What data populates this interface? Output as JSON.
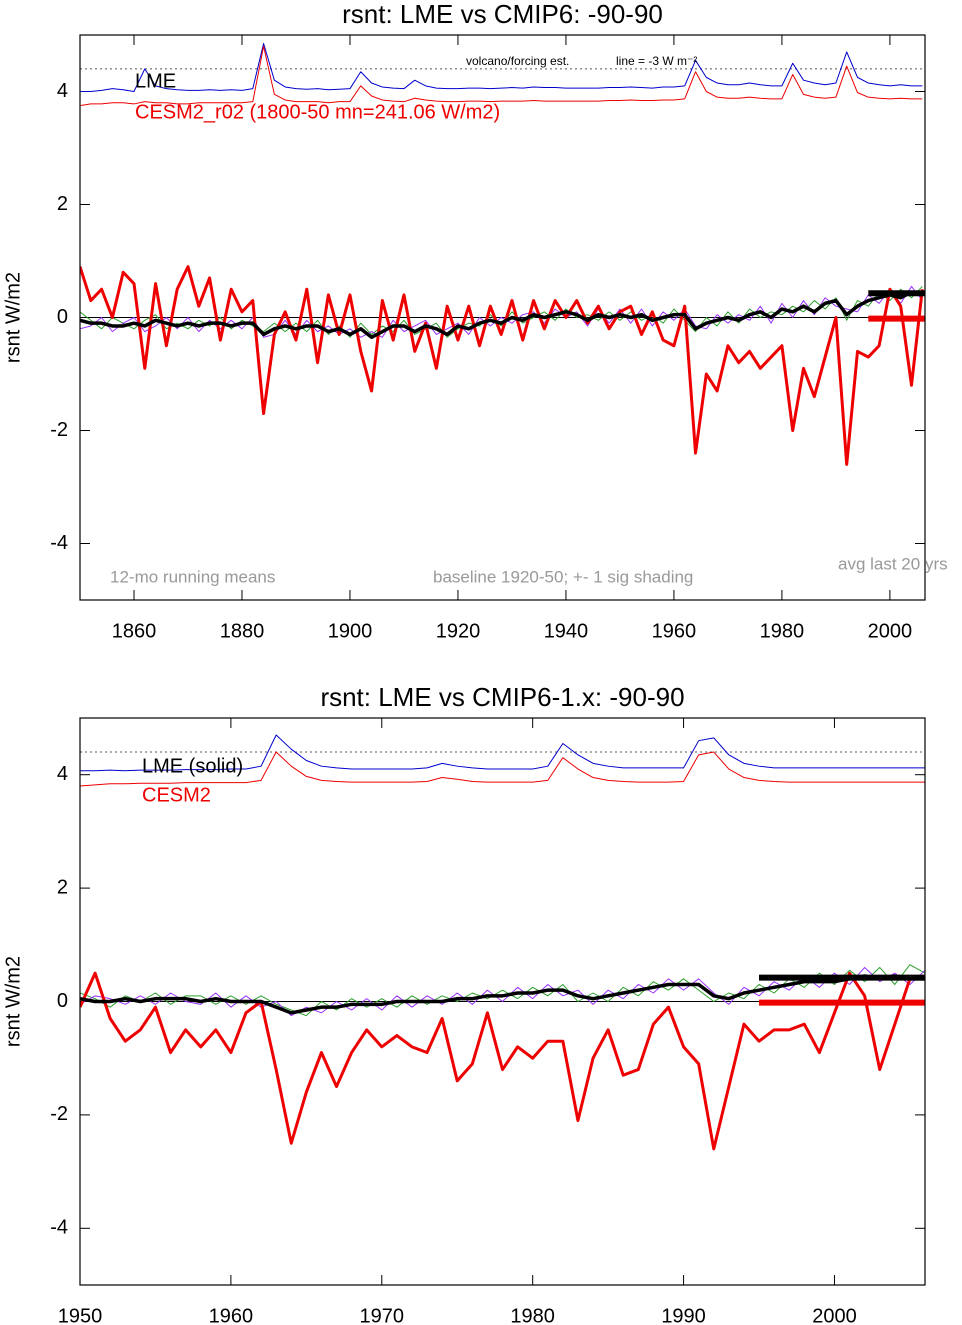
{
  "chart_data": [
    {
      "type": "line",
      "title": "rsnt: LME vs CMIP6: -90-90",
      "ylabel": "rsnt W/m2",
      "xlim": [
        1850,
        2006.5
      ],
      "xticks": [
        1860,
        1880,
        1900,
        1920,
        1940,
        1960,
        1980,
        2000
      ],
      "ylim": [
        -5,
        5
      ],
      "yticks": [
        -4,
        -2,
        0,
        2,
        4
      ],
      "zero_line": 0,
      "ref_line": 4.4,
      "annotations": [
        "volcano/forcing est.",
        "line = -3 W m⁻²",
        "12-mo running means",
        "baseline 1920-50; +- 1 sig shading",
        "avg last 20 yrs"
      ],
      "avg_bars": {
        "from": 1996,
        "values": [
          0.43,
          -0.02
        ],
        "colors": [
          "#000000",
          "#ee0000"
        ]
      },
      "x": [
        1850,
        1852,
        1854,
        1856,
        1858,
        1860,
        1862,
        1864,
        1866,
        1868,
        1870,
        1872,
        1874,
        1876,
        1878,
        1880,
        1882,
        1884,
        1886,
        1888,
        1890,
        1892,
        1894,
        1896,
        1898,
        1900,
        1902,
        1904,
        1906,
        1908,
        1910,
        1912,
        1914,
        1916,
        1918,
        1920,
        1922,
        1924,
        1926,
        1928,
        1930,
        1932,
        1934,
        1936,
        1938,
        1940,
        1942,
        1944,
        1946,
        1948,
        1950,
        1952,
        1954,
        1956,
        1958,
        1960,
        1962,
        1964,
        1966,
        1968,
        1970,
        1972,
        1974,
        1976,
        1978,
        1980,
        1982,
        1984,
        1986,
        1988,
        1990,
        1992,
        1994,
        1996,
        1998,
        2000,
        2002,
        2004,
        2006
      ],
      "series": [
        {
          "color": "#2ca02c",
          "values": [
            0.1,
            -0.05,
            -0.2,
            0.0,
            -0.1,
            -0.2,
            -0.05,
            0.05,
            -0.2,
            -0.1,
            -0.2,
            -0.05,
            -0.15,
            0.0,
            -0.2,
            -0.05,
            -0.15,
            -0.25,
            -0.1,
            -0.25,
            -0.1,
            -0.25,
            -0.05,
            -0.3,
            -0.15,
            -0.35,
            -0.1,
            -0.3,
            -0.15,
            -0.25,
            -0.05,
            -0.3,
            -0.2,
            -0.1,
            -0.35,
            -0.2,
            -0.1,
            -0.15,
            0.05,
            -0.15,
            0.1,
            -0.1,
            0.0,
            0.1,
            -0.05,
            0.15,
            0.0,
            0.05,
            -0.05,
            0.1,
            -0.05,
            0.1,
            -0.05,
            0.05,
            -0.1,
            0.15,
            -0.05,
            -0.25,
            0.0,
            -0.15,
            0.1,
            -0.1,
            0.15,
            0.0,
            0.1,
            0.05,
            0.2,
            0.1,
            0.3,
            0.15,
            0.35,
            -0.05,
            0.3,
            0.2,
            0.45,
            0.3,
            0.5,
            0.35,
            0.55
          ]
        },
        {
          "color": "#9b30ff",
          "values": [
            -0.2,
            -0.15,
            0.0,
            -0.25,
            -0.1,
            0.0,
            -0.25,
            -0.15,
            0.0,
            -0.2,
            0.0,
            -0.25,
            -0.05,
            -0.2,
            -0.05,
            -0.2,
            0.0,
            -0.35,
            -0.3,
            -0.05,
            -0.3,
            -0.05,
            -0.25,
            -0.15,
            -0.3,
            -0.2,
            -0.35,
            -0.25,
            -0.35,
            -0.05,
            -0.25,
            -0.15,
            -0.05,
            -0.3,
            -0.2,
            -0.1,
            -0.3,
            0.0,
            -0.15,
            0.0,
            -0.1,
            0.05,
            0.1,
            -0.1,
            0.15,
            0.0,
            0.1,
            -0.15,
            0.15,
            -0.1,
            0.15,
            -0.1,
            0.15,
            -0.15,
            0.1,
            -0.05,
            0.15,
            -0.15,
            -0.2,
            0.05,
            -0.1,
            0.05,
            -0.05,
            0.2,
            -0.1,
            0.25,
            0.0,
            0.3,
            0.05,
            0.35,
            0.2,
            0.15,
            0.1,
            0.4,
            0.25,
            0.5,
            0.25,
            0.55,
            0.3
          ]
        },
        {
          "color": "#0000cc",
          "values": [
            4.0,
            4.0,
            4.02,
            4.05,
            4.03,
            4.0,
            4.4,
            4.1,
            4.05,
            4.03,
            4.02,
            4.02,
            4.03,
            4.02,
            4.03,
            4.02,
            4.05,
            4.85,
            4.2,
            4.08,
            4.05,
            4.04,
            4.05,
            4.03,
            4.04,
            4.05,
            4.35,
            4.15,
            4.08,
            4.06,
            4.05,
            4.2,
            4.1,
            4.06,
            4.05,
            4.05,
            4.06,
            4.06,
            4.05,
            4.06,
            4.07,
            4.06,
            4.08,
            4.07,
            4.07,
            4.06,
            4.06,
            4.06,
            4.06,
            4.07,
            4.07,
            4.08,
            4.07,
            4.06,
            4.08,
            4.08,
            4.1,
            4.55,
            4.25,
            4.15,
            4.12,
            4.12,
            4.15,
            4.12,
            4.1,
            4.1,
            4.5,
            4.2,
            4.15,
            4.12,
            4.15,
            4.7,
            4.25,
            4.15,
            4.12,
            4.1,
            4.12,
            4.1,
            4.1
          ]
        },
        {
          "color": "#ee0000",
          "values": [
            3.75,
            3.78,
            3.78,
            3.8,
            3.8,
            3.78,
            3.82,
            3.8,
            3.8,
            3.78,
            3.78,
            3.8,
            3.8,
            3.8,
            3.8,
            3.8,
            3.82,
            4.8,
            3.95,
            3.85,
            3.82,
            3.82,
            3.82,
            3.8,
            3.82,
            3.82,
            4.1,
            3.92,
            3.85,
            3.83,
            3.82,
            3.88,
            3.85,
            3.83,
            3.82,
            3.82,
            3.83,
            3.83,
            3.82,
            3.83,
            3.83,
            3.83,
            3.84,
            3.83,
            3.83,
            3.83,
            3.83,
            3.83,
            3.83,
            3.84,
            3.84,
            3.85,
            3.84,
            3.84,
            3.85,
            3.85,
            3.87,
            4.35,
            4.0,
            3.9,
            3.88,
            3.88,
            3.9,
            3.88,
            3.87,
            3.87,
            4.3,
            3.95,
            3.9,
            3.88,
            3.9,
            4.45,
            3.98,
            3.9,
            3.88,
            3.87,
            3.88,
            3.87,
            3.87
          ]
        },
        {
          "name": "CESM2_r02 (1800-50 mn=241.06 W/m2)",
          "color": "#ee0000",
          "width": 3,
          "values": [
            0.9,
            0.3,
            0.5,
            0.0,
            0.8,
            0.6,
            -0.9,
            0.6,
            -0.5,
            0.5,
            0.9,
            0.2,
            0.7,
            -0.4,
            0.5,
            0.1,
            0.3,
            -1.7,
            -0.3,
            0.1,
            -0.4,
            0.5,
            -0.8,
            0.4,
            -0.3,
            0.4,
            -0.6,
            -1.3,
            0.3,
            -0.4,
            0.4,
            -0.6,
            -0.1,
            -0.9,
            0.2,
            -0.4,
            0.2,
            -0.5,
            0.2,
            -0.3,
            0.3,
            -0.4,
            0.3,
            -0.2,
            0.3,
            0.0,
            0.3,
            -0.1,
            0.2,
            -0.2,
            0.1,
            0.2,
            -0.3,
            0.1,
            -0.4,
            -0.5,
            0.2,
            -2.4,
            -1.0,
            -1.3,
            -0.5,
            -0.8,
            -0.6,
            -0.9,
            -0.7,
            -0.5,
            -2.0,
            -0.9,
            -1.4,
            -0.7,
            0.0,
            -2.6,
            -0.6,
            -0.7,
            -0.5,
            0.5,
            0.2,
            -1.2,
            0.5
          ]
        },
        {
          "name": "LME",
          "color": "#000000",
          "width": 3.5,
          "values": [
            -0.05,
            -0.1,
            -0.1,
            -0.15,
            -0.15,
            -0.1,
            -0.15,
            -0.05,
            -0.1,
            -0.15,
            -0.1,
            -0.15,
            -0.1,
            -0.1,
            -0.15,
            -0.1,
            -0.1,
            -0.3,
            -0.2,
            -0.15,
            -0.2,
            -0.15,
            -0.15,
            -0.25,
            -0.2,
            -0.3,
            -0.2,
            -0.35,
            -0.25,
            -0.15,
            -0.15,
            -0.25,
            -0.15,
            -0.2,
            -0.3,
            -0.15,
            -0.2,
            -0.1,
            -0.05,
            -0.1,
            0.0,
            -0.05,
            0.05,
            0.0,
            0.05,
            0.1,
            0.05,
            -0.05,
            0.05,
            0.0,
            0.05,
            0.0,
            0.05,
            -0.05,
            0.0,
            0.05,
            0.05,
            -0.2,
            -0.1,
            -0.05,
            0.0,
            -0.05,
            0.05,
            0.1,
            0.0,
            0.15,
            0.1,
            0.2,
            0.1,
            0.25,
            0.3,
            0.05,
            0.2,
            0.3,
            0.35,
            0.4,
            0.35,
            0.45,
            0.4
          ]
        }
      ]
    },
    {
      "type": "line",
      "title": "rsnt: LME vs CMIP6-1.x: -90-90",
      "ylabel": "rsnt W/m2",
      "xlim": [
        1950,
        2006
      ],
      "xticks": [
        1950,
        1960,
        1970,
        1980,
        1990,
        2000
      ],
      "ylim": [
        -5,
        5
      ],
      "yticks": [
        -4,
        -2,
        0,
        2,
        4
      ],
      "zero_line": 0,
      "ref_line": 4.4,
      "avg_bars": {
        "from": 1995,
        "values": [
          0.42,
          -0.02
        ],
        "colors": [
          "#000000",
          "#ee0000"
        ]
      },
      "x": [
        1950,
        1951,
        1952,
        1953,
        1954,
        1955,
        1956,
        1957,
        1958,
        1959,
        1960,
        1961,
        1962,
        1963,
        1964,
        1965,
        1966,
        1967,
        1968,
        1969,
        1970,
        1971,
        1972,
        1973,
        1974,
        1975,
        1976,
        1977,
        1978,
        1979,
        1980,
        1981,
        1982,
        1983,
        1984,
        1985,
        1986,
        1987,
        1988,
        1989,
        1990,
        1991,
        1992,
        1993,
        1994,
        1995,
        1996,
        1997,
        1998,
        1999,
        2000,
        2001,
        2002,
        2003,
        2004,
        2005,
        2006
      ],
      "series": [
        {
          "color": "#2ca02c",
          "values": [
            0.15,
            0.05,
            -0.1,
            0.1,
            0.0,
            0.15,
            -0.05,
            0.1,
            0.1,
            -0.05,
            0.1,
            -0.05,
            0.1,
            -0.05,
            -0.15,
            -0.25,
            0.0,
            -0.15,
            0.05,
            -0.1,
            0.05,
            -0.1,
            0.1,
            -0.05,
            0.1,
            0.0,
            0.15,
            0.05,
            0.2,
            0.05,
            0.25,
            0.1,
            0.3,
            0.0,
            0.15,
            0.0,
            0.25,
            0.1,
            0.35,
            0.2,
            0.4,
            0.2,
            0.0,
            0.15,
            0.05,
            0.3,
            0.15,
            0.4,
            0.25,
            0.5,
            0.3,
            0.55,
            0.35,
            0.6,
            0.3,
            0.65,
            0.5
          ]
        },
        {
          "color": "#9b30ff",
          "values": [
            -0.05,
            0.1,
            0.05,
            -0.05,
            0.1,
            -0.05,
            0.15,
            0.0,
            -0.05,
            0.15,
            -0.1,
            0.1,
            -0.1,
            0.0,
            -0.25,
            -0.1,
            -0.2,
            0.0,
            -0.15,
            0.05,
            -0.15,
            0.1,
            -0.1,
            0.1,
            -0.05,
            0.15,
            -0.05,
            0.2,
            0.0,
            0.25,
            0.05,
            0.3,
            0.1,
            0.2,
            -0.05,
            0.2,
            0.05,
            0.3,
            0.15,
            0.4,
            0.2,
            0.4,
            0.15,
            -0.05,
            0.25,
            0.1,
            0.35,
            0.2,
            0.45,
            0.25,
            0.5,
            0.3,
            0.6,
            0.35,
            0.5,
            0.3,
            0.55
          ]
        },
        {
          "color": "#0000cc",
          "values": [
            4.07,
            4.07,
            4.08,
            4.07,
            4.08,
            4.08,
            4.08,
            4.09,
            4.09,
            4.09,
            4.1,
            4.1,
            4.15,
            4.7,
            4.45,
            4.25,
            4.15,
            4.12,
            4.1,
            4.1,
            4.1,
            4.1,
            4.1,
            4.12,
            4.2,
            4.15,
            4.12,
            4.1,
            4.1,
            4.1,
            4.1,
            4.15,
            4.55,
            4.35,
            4.2,
            4.15,
            4.12,
            4.12,
            4.12,
            4.12,
            4.12,
            4.6,
            4.65,
            4.35,
            4.2,
            4.15,
            4.12,
            4.12,
            4.12,
            4.12,
            4.12,
            4.12,
            4.12,
            4.12,
            4.12,
            4.12,
            4.12
          ]
        },
        {
          "color": "#ee0000",
          "values": [
            3.8,
            3.82,
            3.84,
            3.84,
            3.85,
            3.85,
            3.85,
            3.86,
            3.86,
            3.86,
            3.86,
            3.86,
            3.9,
            4.4,
            4.15,
            3.97,
            3.9,
            3.88,
            3.87,
            3.87,
            3.87,
            3.87,
            3.87,
            3.88,
            3.95,
            3.92,
            3.88,
            3.87,
            3.87,
            3.87,
            3.87,
            3.9,
            4.3,
            4.1,
            3.95,
            3.9,
            3.88,
            3.87,
            3.87,
            3.87,
            3.88,
            4.35,
            4.4,
            4.1,
            3.95,
            3.9,
            3.88,
            3.87,
            3.87,
            3.87,
            3.87,
            3.87,
            3.87,
            3.87,
            3.87,
            3.87,
            3.87
          ]
        },
        {
          "name": "CESM2",
          "color": "#ee0000",
          "width": 3,
          "values": [
            -0.1,
            0.5,
            -0.3,
            -0.7,
            -0.5,
            -0.1,
            -0.9,
            -0.5,
            -0.8,
            -0.5,
            -0.9,
            -0.2,
            0.0,
            -1.2,
            -2.5,
            -1.6,
            -0.9,
            -1.5,
            -0.9,
            -0.5,
            -0.8,
            -0.6,
            -0.8,
            -0.9,
            -0.3,
            -1.4,
            -1.1,
            -0.2,
            -1.2,
            -0.8,
            -1.0,
            -0.7,
            -0.7,
            -2.1,
            -1.0,
            -0.5,
            -1.3,
            -1.2,
            -0.4,
            -0.1,
            -0.8,
            -1.1,
            -2.6,
            -1.5,
            -0.4,
            -0.7,
            -0.5,
            -0.5,
            -0.4,
            -0.9,
            -0.2,
            0.5,
            0.1,
            -1.2,
            -0.4,
            0.4,
            0.4
          ]
        },
        {
          "name": "LME (solid)",
          "color": "#000000",
          "width": 3.5,
          "values": [
            0.05,
            0.0,
            0.0,
            0.05,
            0.0,
            0.05,
            0.05,
            0.05,
            0.0,
            0.05,
            0.0,
            0.0,
            0.0,
            -0.1,
            -0.2,
            -0.15,
            -0.1,
            -0.1,
            -0.05,
            -0.05,
            -0.05,
            0.0,
            0.0,
            0.0,
            0.0,
            0.05,
            0.05,
            0.1,
            0.1,
            0.15,
            0.15,
            0.2,
            0.2,
            0.1,
            0.05,
            0.1,
            0.15,
            0.2,
            0.25,
            0.3,
            0.3,
            0.3,
            0.1,
            0.05,
            0.15,
            0.2,
            0.25,
            0.3,
            0.35,
            0.35,
            0.35,
            0.4,
            0.45,
            0.4,
            0.45,
            0.4,
            0.4
          ]
        }
      ]
    }
  ]
}
